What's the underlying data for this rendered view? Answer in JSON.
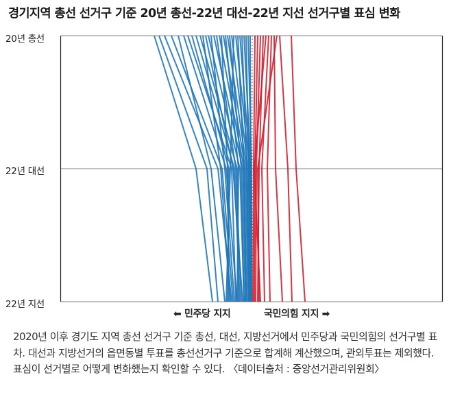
{
  "title": "경기지역 총선 선거구 기준 20년 총선-22년 대선-22년 지선 선거구별 표심 변화",
  "axis": {
    "levels": [
      "20년 총선",
      "22년 대선",
      "22년 지선"
    ],
    "left_direction_label": "민주당 지지",
    "right_direction_label": "국민의힘 지지"
  },
  "caption": "2020년 이후 경기도 지역 총선 선거구 기준 총선, 대선, 지방선거에서 민주당과 국민의힘의 선거구별 표차. 대선과 지방선거의 읍면동별 투표를 총선선거구 기준으로 합계해 계산했으며, 관외투표는 제외했다. 표심이 선거별로 어떻게 변화했는지 확인할 수 있다. 〈데이터출처 : 중앙선거관리위원회〉",
  "colors": {
    "democratic": "#1f77b8",
    "ppp": "#d21f2f",
    "gridline": "#9a9a9a",
    "axis": "#222222"
  },
  "chart_data": {
    "type": "line",
    "title": "경기지역 총선 선거구 기준 20년 총선-22년 대선-22년 지선 선거구별 표심 변화",
    "x": [
      "20년 총선",
      "22년 대선",
      "22년 지선"
    ],
    "xlabel": "",
    "ylabel": "",
    "orientation": "vertical (elections on y-axis, margin on x-axis)",
    "value_axis": "relative margin: negative = 민주당 지지 (left), positive = 국민의힘 지지 (right); center = 0",
    "grid": true,
    "legend": {
      "left": "← 민주당 지지",
      "right": "국민의힘 지지 →"
    },
    "series_note": "approx. pixel offsets from center line (x≈368), estimated",
    "series": [
      {
        "name": "blue-01",
        "party": "democratic",
        "values": [
          -143,
          -82,
          -58
        ]
      },
      {
        "name": "blue-02",
        "party": "democratic",
        "values": [
          -136,
          -66,
          -50
        ]
      },
      {
        "name": "blue-03",
        "party": "democratic",
        "values": [
          -128,
          -50,
          -30
        ]
      },
      {
        "name": "blue-04",
        "party": "democratic",
        "values": [
          -118,
          -44,
          -28
        ]
      },
      {
        "name": "blue-05",
        "party": "democratic",
        "values": [
          -108,
          -60,
          -40
        ]
      },
      {
        "name": "blue-06",
        "party": "democratic",
        "values": [
          -100,
          -38,
          -22
        ]
      },
      {
        "name": "blue-07",
        "party": "democratic",
        "values": [
          -94,
          -30,
          -24
        ]
      },
      {
        "name": "blue-08",
        "party": "democratic",
        "values": [
          -88,
          -34,
          -36
        ]
      },
      {
        "name": "blue-09",
        "party": "democratic",
        "values": [
          -82,
          -26,
          -18
        ]
      },
      {
        "name": "blue-10",
        "party": "democratic",
        "values": [
          -76,
          -22,
          -20
        ]
      },
      {
        "name": "blue-11",
        "party": "democratic",
        "values": [
          -72,
          -46,
          -32
        ]
      },
      {
        "name": "blue-12",
        "party": "democratic",
        "values": [
          -68,
          -28,
          -14
        ]
      },
      {
        "name": "blue-13",
        "party": "democratic",
        "values": [
          -64,
          -18,
          -12
        ]
      },
      {
        "name": "blue-14",
        "party": "democratic",
        "values": [
          -60,
          -40,
          -26
        ]
      },
      {
        "name": "blue-15",
        "party": "democratic",
        "values": [
          -56,
          -14,
          -10
        ]
      },
      {
        "name": "blue-16",
        "party": "democratic",
        "values": [
          -52,
          -24,
          -16
        ]
      },
      {
        "name": "blue-17",
        "party": "democratic",
        "values": [
          -48,
          -12,
          -8
        ]
      },
      {
        "name": "blue-18",
        "party": "democratic",
        "values": [
          -45,
          -36,
          -34
        ]
      },
      {
        "name": "blue-19",
        "party": "democratic",
        "values": [
          -42,
          -10,
          -6
        ]
      },
      {
        "name": "blue-20",
        "party": "democratic",
        "values": [
          -39,
          -20,
          -22
        ]
      },
      {
        "name": "blue-21",
        "party": "democratic",
        "values": [
          -36,
          -8,
          -4
        ]
      },
      {
        "name": "blue-22",
        "party": "democratic",
        "values": [
          -33,
          -16,
          -12
        ]
      },
      {
        "name": "blue-23",
        "party": "democratic",
        "values": [
          -30,
          -6,
          -3
        ]
      },
      {
        "name": "blue-24",
        "party": "democratic",
        "values": [
          -27,
          -32,
          -38
        ]
      },
      {
        "name": "blue-25",
        "party": "democratic",
        "values": [
          -24,
          -4,
          -2
        ]
      },
      {
        "name": "blue-26",
        "party": "democratic",
        "values": [
          -21,
          -12,
          -9
        ]
      },
      {
        "name": "blue-27",
        "party": "democratic",
        "values": [
          -18,
          -3,
          -1
        ]
      },
      {
        "name": "blue-28",
        "party": "democratic",
        "values": [
          -15,
          -8,
          -5
        ]
      },
      {
        "name": "blue-29",
        "party": "democratic",
        "values": [
          -12,
          -2,
          -1
        ]
      },
      {
        "name": "blue-30",
        "party": "democratic",
        "values": [
          -9,
          -5,
          -3
        ]
      },
      {
        "name": "blue-31",
        "party": "democratic",
        "values": [
          -6,
          -1,
          -1
        ]
      },
      {
        "name": "blue-32",
        "party": "democratic",
        "values": [
          -3,
          -2,
          -1
        ]
      },
      {
        "name": "red-01",
        "party": "ppp",
        "values": [
          4,
          2,
          1
        ]
      },
      {
        "name": "red-02",
        "party": "ppp",
        "values": [
          8,
          4,
          3
        ]
      },
      {
        "name": "red-03",
        "party": "ppp",
        "values": [
          12,
          6,
          5
        ]
      },
      {
        "name": "red-04",
        "party": "ppp",
        "values": [
          16,
          10,
          8
        ]
      },
      {
        "name": "red-05",
        "party": "ppp",
        "values": [
          20,
          3,
          12
        ]
      },
      {
        "name": "red-06",
        "party": "ppp",
        "values": [
          24,
          14,
          18
        ]
      },
      {
        "name": "red-07",
        "party": "ppp",
        "values": [
          28,
          22,
          26
        ]
      },
      {
        "name": "red-08",
        "party": "ppp",
        "values": [
          32,
          34,
          44
        ]
      },
      {
        "name": "red-09",
        "party": "ppp",
        "values": [
          36,
          8,
          10
        ]
      },
      {
        "name": "red-10",
        "party": "ppp",
        "values": [
          40,
          52,
          58
        ]
      },
      {
        "name": "red-11",
        "party": "ppp",
        "values": [
          57,
          64,
          77
        ]
      }
    ]
  }
}
